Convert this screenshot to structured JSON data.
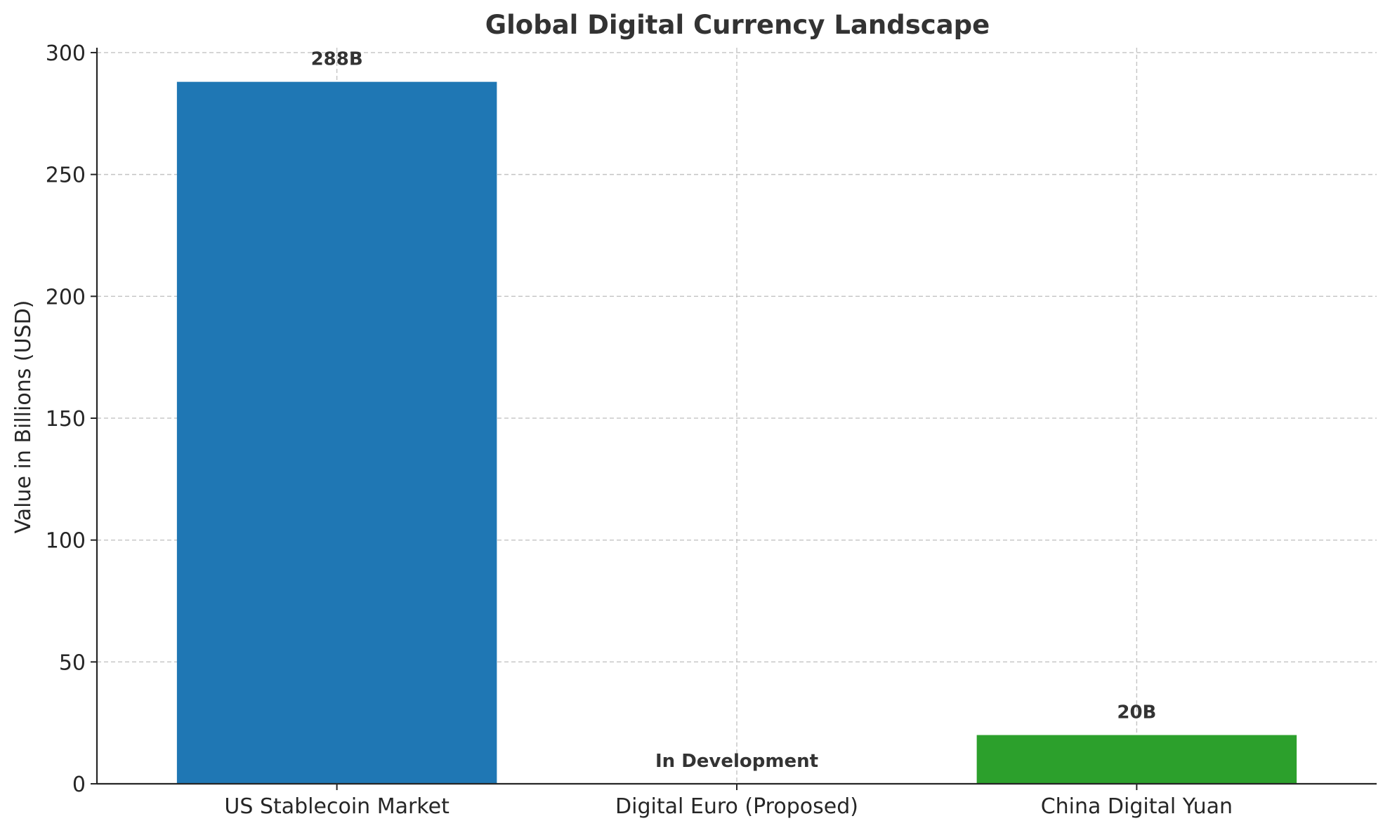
{
  "chart_data": {
    "type": "bar",
    "title": "Global Digital Currency Landscape",
    "xlabel": "",
    "ylabel": "Value in Billions (USD)",
    "categories": [
      "US Stablecoin Market",
      "Digital Euro (Proposed)",
      "China Digital Yuan"
    ],
    "values": [
      288,
      0,
      20
    ],
    "data_labels": [
      "288B",
      "In Development",
      "20B"
    ],
    "colors": [
      "#1f77b4",
      "#ff7f0e",
      "#2ca02c"
    ],
    "ylim": [
      0,
      302
    ],
    "yticks": [
      0,
      50,
      100,
      150,
      200,
      250,
      300
    ],
    "grid": true
  }
}
